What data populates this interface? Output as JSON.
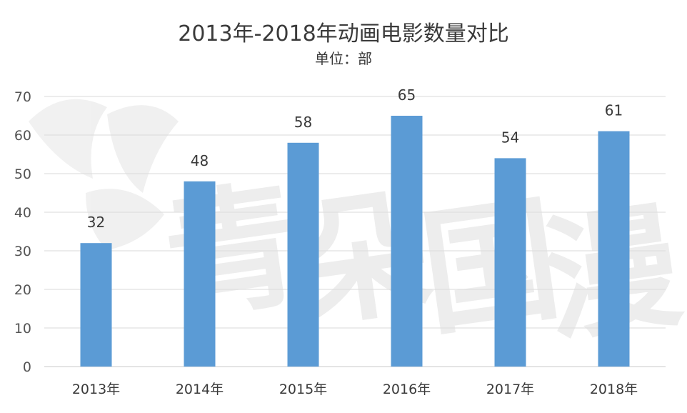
{
  "chart_data": {
    "type": "bar",
    "title": "2013年-2018年动画电影数量对比",
    "subtitle": "单位：部",
    "categories": [
      "2013年",
      "2014年",
      "2015年",
      "2016年",
      "2017年",
      "2018年"
    ],
    "values": [
      32,
      48,
      58,
      65,
      54,
      61
    ],
    "ylim": [
      0,
      70
    ],
    "yticks": [
      0,
      10,
      20,
      30,
      40,
      50,
      60,
      70
    ],
    "xlabel": "",
    "ylabel": "",
    "grid": true,
    "bar_color": "#5b9bd5",
    "data_labels": true
  },
  "watermark": {
    "text": "青朵国漫",
    "color": "#f0f0f0"
  }
}
